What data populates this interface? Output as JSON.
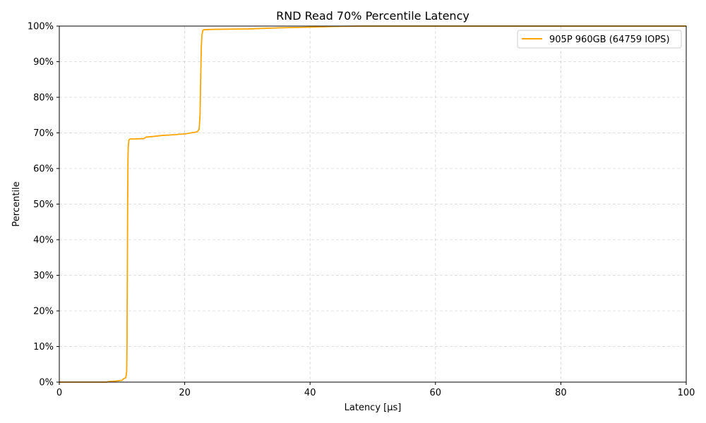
{
  "chart_data": {
    "type": "line",
    "title": "RND Read 70% Percentile Latency",
    "xlabel": "Latency [µs]",
    "ylabel": "Percentile",
    "xlim": [
      0,
      100
    ],
    "ylim": [
      0,
      100
    ],
    "x_ticks": [
      0,
      20,
      40,
      60,
      80,
      100
    ],
    "y_ticks": [
      0,
      10,
      20,
      30,
      40,
      50,
      60,
      70,
      80,
      90,
      100
    ],
    "y_tick_suffix": "%",
    "grid": true,
    "legend_position": "top-right",
    "series": [
      {
        "name": "905P 960GB (64759 IOPS)",
        "color": "#FFA500",
        "x": [
          0,
          7.5,
          8.0,
          9.0,
          10.0,
          10.3,
          10.6,
          10.75,
          10.8,
          10.85,
          10.9,
          10.95,
          11.0,
          11.1,
          11.3,
          12.0,
          13.5,
          13.8,
          15.0,
          16.5,
          18.5,
          19.0,
          20.0,
          21.0,
          22.0,
          22.3,
          22.45,
          22.55,
          22.65,
          22.75,
          22.9,
          23.1,
          24.0,
          25.0,
          30.0,
          35.0,
          40.0,
          42.0,
          44.0,
          46.0,
          48.0,
          50.0,
          55.0,
          60.0,
          70.0,
          80.0,
          90.0,
          100.0
        ],
        "y": [
          0,
          0,
          0.2,
          0.3,
          0.5,
          1.0,
          1.2,
          3.0,
          10.0,
          30.0,
          50.0,
          62.0,
          66.0,
          68.0,
          68.3,
          68.3,
          68.4,
          68.8,
          69.0,
          69.3,
          69.5,
          69.6,
          69.7,
          70.0,
          70.3,
          71.0,
          75.0,
          85.0,
          94.0,
          97.5,
          98.8,
          99.0,
          99.05,
          99.1,
          99.2,
          99.5,
          99.7,
          99.8,
          99.9,
          99.95,
          100,
          100,
          100,
          100,
          100,
          100,
          100,
          100
        ]
      }
    ]
  }
}
